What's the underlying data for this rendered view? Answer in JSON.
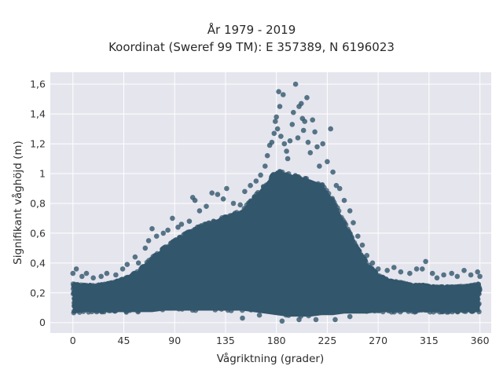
{
  "chart_data": {
    "type": "scatter",
    "title": "År 1979 - 2019",
    "subtitle": "Koordinat (Sweref 99 TM): E 357389, N 6196023",
    "xlabel": "Vågriktning (grader)",
    "ylabel": "Signifikant våghöjd (m)",
    "xlim": [
      -20,
      370
    ],
    "ylim": [
      -0.07,
      1.68
    ],
    "x_ticks": [
      0,
      45,
      90,
      135,
      180,
      225,
      270,
      315,
      360
    ],
    "x_tick_labels": [
      "0",
      "45",
      "90",
      "135",
      "180",
      "225",
      "270",
      "315",
      "360"
    ],
    "y_ticks": [
      0,
      0.2,
      0.4,
      0.6,
      0.8,
      1.0,
      1.2,
      1.4,
      1.6
    ],
    "y_tick_labels": [
      "0",
      "0,2",
      "0,4",
      "0,6",
      "0,8",
      "1",
      "1,2",
      "1,4",
      "1,6"
    ],
    "grid": true,
    "legend": "none",
    "series": [
      {
        "marker_color": "#32566b",
        "envelope": {
          "x": [
            0,
            10,
            20,
            30,
            40,
            50,
            60,
            70,
            80,
            90,
            100,
            110,
            120,
            130,
            140,
            150,
            160,
            170,
            180,
            190,
            200,
            210,
            220,
            230,
            240,
            250,
            260,
            270,
            280,
            290,
            300,
            310,
            320,
            330,
            340,
            350,
            360
          ],
          "y_max": [
            0.26,
            0.25,
            0.25,
            0.26,
            0.28,
            0.31,
            0.36,
            0.44,
            0.5,
            0.55,
            0.6,
            0.64,
            0.67,
            0.7,
            0.72,
            0.76,
            0.84,
            0.93,
            1.02,
            1.0,
            0.98,
            0.96,
            0.93,
            0.83,
            0.68,
            0.52,
            0.4,
            0.32,
            0.28,
            0.27,
            0.25,
            0.25,
            0.24,
            0.24,
            0.24,
            0.25,
            0.26
          ],
          "y_min": [
            0.06,
            0.07,
            0.07,
            0.07,
            0.07,
            0.07,
            0.07,
            0.07,
            0.08,
            0.08,
            0.08,
            0.08,
            0.08,
            0.08,
            0.08,
            0.08,
            0.07,
            0.06,
            0.05,
            0.04,
            0.04,
            0.04,
            0.05,
            0.05,
            0.06,
            0.06,
            0.06,
            0.07,
            0.07,
            0.07,
            0.07,
            0.07,
            0.07,
            0.07,
            0.07,
            0.07,
            0.07
          ]
        },
        "outliers": [
          [
            0,
            0.33
          ],
          [
            3,
            0.36
          ],
          [
            8,
            0.31
          ],
          [
            12,
            0.33
          ],
          [
            18,
            0.3
          ],
          [
            25,
            0.31
          ],
          [
            30,
            0.33
          ],
          [
            38,
            0.32
          ],
          [
            44,
            0.36
          ],
          [
            48,
            0.39
          ],
          [
            55,
            0.44
          ],
          [
            58,
            0.4
          ],
          [
            64,
            0.5
          ],
          [
            67,
            0.55
          ],
          [
            70,
            0.63
          ],
          [
            74,
            0.58
          ],
          [
            80,
            0.6
          ],
          [
            84,
            0.62
          ],
          [
            88,
            0.7
          ],
          [
            93,
            0.64
          ],
          [
            96,
            0.66
          ],
          [
            103,
            0.68
          ],
          [
            106,
            0.84
          ],
          [
            108,
            0.82
          ],
          [
            112,
            0.75
          ],
          [
            118,
            0.78
          ],
          [
            123,
            0.87
          ],
          [
            128,
            0.86
          ],
          [
            133,
            0.83
          ],
          [
            136,
            0.9
          ],
          [
            142,
            0.8
          ],
          [
            148,
            0.79
          ],
          [
            152,
            0.88
          ],
          [
            157,
            0.92
          ],
          [
            162,
            0.95
          ],
          [
            166,
            0.99
          ],
          [
            170,
            1.05
          ],
          [
            172,
            1.12
          ],
          [
            174,
            1.19
          ],
          [
            176,
            1.21
          ],
          [
            178,
            1.27
          ],
          [
            179,
            1.35
          ],
          [
            180,
            1.38
          ],
          [
            181,
            1.3
          ],
          [
            182,
            1.55
          ],
          [
            183,
            1.45
          ],
          [
            184,
            1.25
          ],
          [
            186,
            1.53
          ],
          [
            187,
            1.2
          ],
          [
            189,
            1.15
          ],
          [
            190,
            1.1
          ],
          [
            192,
            1.22
          ],
          [
            194,
            1.33
          ],
          [
            195,
            1.41
          ],
          [
            197,
            1.6
          ],
          [
            199,
            1.24
          ],
          [
            200,
            1.45
          ],
          [
            202,
            1.47
          ],
          [
            203,
            1.37
          ],
          [
            204,
            1.29
          ],
          [
            205,
            1.35
          ],
          [
            207,
            1.51
          ],
          [
            208,
            1.21
          ],
          [
            210,
            1.14
          ],
          [
            212,
            1.36
          ],
          [
            214,
            1.28
          ],
          [
            216,
            1.18
          ],
          [
            218,
            1.05
          ],
          [
            221,
            1.2
          ],
          [
            225,
            1.08
          ],
          [
            228,
            1.3
          ],
          [
            230,
            1.01
          ],
          [
            233,
            0.92
          ],
          [
            236,
            0.9
          ],
          [
            240,
            0.82
          ],
          [
            245,
            0.75
          ],
          [
            248,
            0.67
          ],
          [
            252,
            0.58
          ],
          [
            256,
            0.52
          ],
          [
            260,
            0.45
          ],
          [
            265,
            0.4
          ],
          [
            270,
            0.36
          ],
          [
            278,
            0.35
          ],
          [
            284,
            0.37
          ],
          [
            290,
            0.34
          ],
          [
            298,
            0.33
          ],
          [
            304,
            0.36
          ],
          [
            309,
            0.36
          ],
          [
            312,
            0.41
          ],
          [
            318,
            0.33
          ],
          [
            322,
            0.3
          ],
          [
            328,
            0.32
          ],
          [
            335,
            0.33
          ],
          [
            340,
            0.31
          ],
          [
            346,
            0.35
          ],
          [
            352,
            0.32
          ],
          [
            358,
            0.34
          ],
          [
            360,
            0.31
          ],
          [
            150,
            0.03
          ],
          [
            165,
            0.05
          ],
          [
            185,
            0.01
          ],
          [
            200,
            0.02
          ],
          [
            215,
            0.02
          ],
          [
            232,
            0.02
          ],
          [
            245,
            0.04
          ]
        ]
      }
    ]
  }
}
